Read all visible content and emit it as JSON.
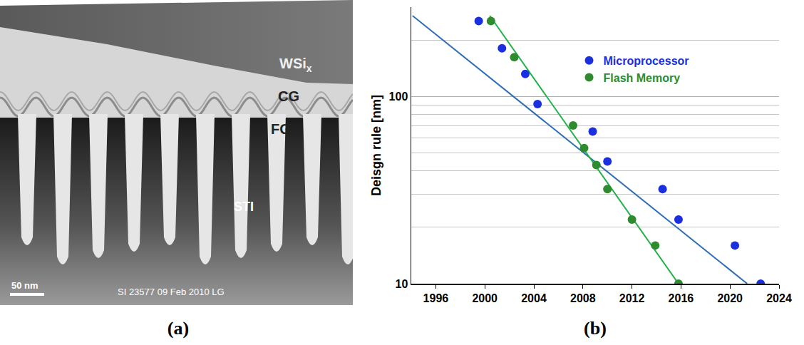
{
  "panel_a": {
    "letter": "(a)",
    "labels": [
      {
        "text": "WSi",
        "subscript": "x"
      },
      {
        "text": "CG"
      },
      {
        "text": "FG"
      },
      {
        "text": "STI"
      }
    ],
    "scale_bar": "50 nm",
    "footer": "SI 23577    09 Feb 2010 LG"
  },
  "chart_data": {
    "letter": "(b)",
    "type": "scatter",
    "ylabel": "Deisgn rule [nm]",
    "log": "y",
    "xlim": [
      1994,
      2024
    ],
    "xticks": [
      1996,
      2000,
      2004,
      2008,
      2012,
      2016,
      2020,
      2024
    ],
    "ylim": [
      10,
      300
    ],
    "yticks": [
      10,
      100
    ],
    "grid": true,
    "legend": "top right",
    "series": [
      {
        "name": "Microprocessor",
        "color": "#1a2fe0",
        "marker": "circle",
        "x": [
          1999.5,
          2001.4,
          2003.3,
          2004.3,
          2008.8,
          2010,
          2014.5,
          2015.8,
          2020.4,
          2022.5
        ],
        "values": [
          253,
          181,
          132,
          91,
          65,
          45,
          32,
          22,
          16,
          10
        ],
        "trend": {
          "x": [
            1994.1,
            2021.4
          ],
          "values": [
            270,
            10
          ],
          "color": "#2f6db5"
        }
      },
      {
        "name": "Flash Memory",
        "color": "#2e8b2e",
        "marker": "circle",
        "x": [
          2000.5,
          2002.4,
          2007.2,
          2008.1,
          2009.1,
          2010,
          2012,
          2013.9,
          2015.8
        ],
        "values": [
          253,
          162,
          70,
          53,
          43,
          32,
          22,
          16,
          10
        ],
        "trend": {
          "x": [
            2000.4,
            2015.8
          ],
          "values": [
            270,
            10
          ],
          "color": "#22b04a"
        }
      }
    ]
  }
}
